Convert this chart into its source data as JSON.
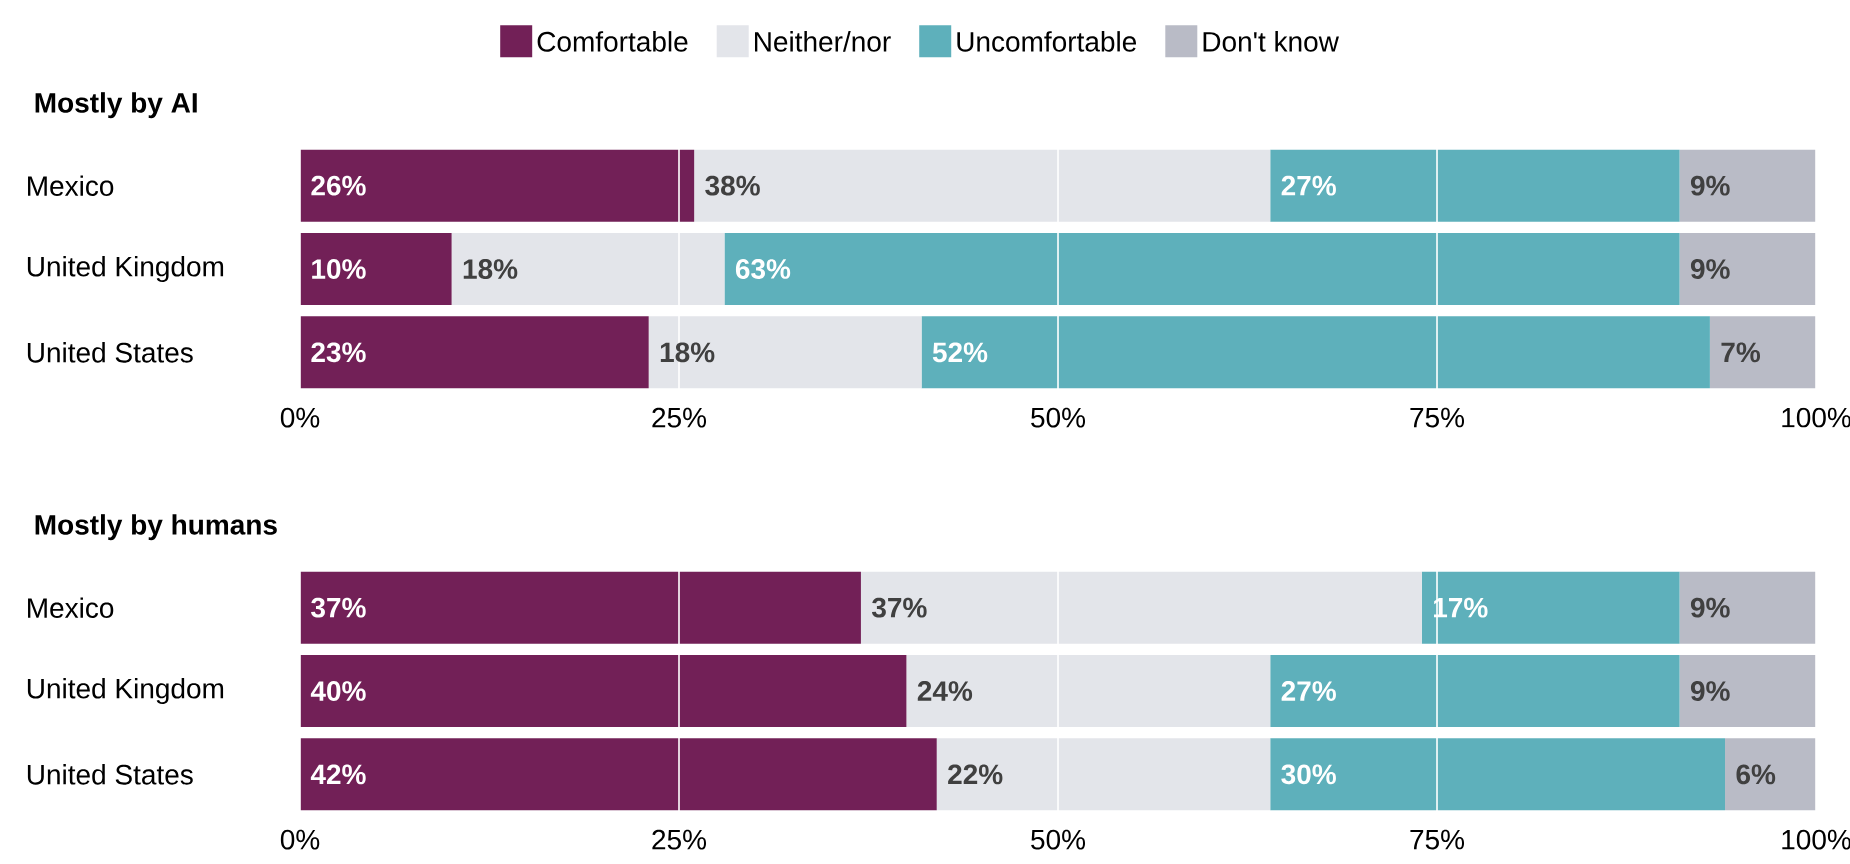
{
  "chart_data": [
    {
      "type": "bar",
      "orientation": "horizontal",
      "stacked": true,
      "title": "Mostly by AI",
      "categories": [
        "Mexico",
        "United Kingdom",
        "United States"
      ],
      "xlim": [
        0,
        100
      ],
      "xticks": [
        {
          "value": 0,
          "label": "0%"
        },
        {
          "value": 25,
          "label": "25%"
        },
        {
          "value": 50,
          "label": "50%"
        },
        {
          "value": 75,
          "label": "75%"
        },
        {
          "value": 100,
          "label": "100%"
        }
      ],
      "grid": "x",
      "legend": "top",
      "series": [
        {
          "name": "Comfortable",
          "color": "#722057",
          "values": [
            26,
            10,
            23
          ],
          "value_labels": [
            "26%",
            "10%",
            "23%"
          ]
        },
        {
          "name": "Neither/nor",
          "color": "#e3e5ea",
          "values": [
            38,
            18,
            18
          ],
          "value_labels": [
            "38%",
            "18%",
            "18%"
          ]
        },
        {
          "name": "Uncomfortable",
          "color": "#5eb0bb",
          "values": [
            27,
            63,
            52
          ],
          "value_labels": [
            "27%",
            "63%",
            "52%"
          ]
        },
        {
          "name": "Don't know",
          "color": "#b9bbc6",
          "values": [
            9,
            9,
            7
          ],
          "value_labels": [
            "9%",
            "9%",
            "7%"
          ]
        }
      ]
    },
    {
      "type": "bar",
      "orientation": "horizontal",
      "stacked": true,
      "title": "Mostly by humans",
      "categories": [
        "Mexico",
        "United Kingdom",
        "United States"
      ],
      "xlim": [
        0,
        100
      ],
      "xticks": [
        {
          "value": 0,
          "label": "0%"
        },
        {
          "value": 25,
          "label": "25%"
        },
        {
          "value": 50,
          "label": "50%"
        },
        {
          "value": 75,
          "label": "75%"
        },
        {
          "value": 100,
          "label": "100%"
        }
      ],
      "grid": "x",
      "series": [
        {
          "color": "#722057",
          "values": [
            37,
            40,
            42
          ],
          "value_labels": [
            "37%",
            "40%",
            "42%"
          ]
        },
        {
          "color": "#e3e5ea",
          "values": [
            37,
            24,
            22
          ],
          "value_labels": [
            "37%",
            "24%",
            "22%"
          ]
        },
        {
          "color": "#5eb0bb",
          "values": [
            17,
            27,
            30
          ],
          "value_labels": [
            "17%",
            "27%",
            "30%"
          ]
        },
        {
          "color": "#b9bbc6",
          "values": [
            9,
            9,
            6
          ],
          "value_labels": [
            "9%",
            "9%",
            "6%"
          ]
        }
      ]
    }
  ]
}
